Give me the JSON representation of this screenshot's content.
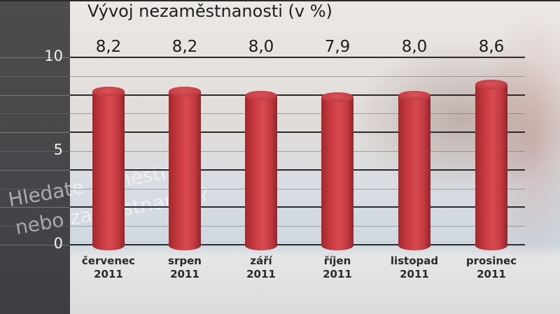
{
  "chart_data": {
    "type": "bar",
    "title": "Vývoj nezaměstnanosti (v %)",
    "xlabel": "",
    "ylabel": "",
    "ylim": [
      0,
      10
    ],
    "yticks": [
      "0",
      "5",
      "10"
    ],
    "grid": true,
    "categories": [
      "červenec 2011",
      "srpen 2011",
      "září 2011",
      "říjen 2011",
      "listopad 2011",
      "prosinec 2011"
    ],
    "category_lines": [
      {
        "month": "červenec",
        "year": "2011"
      },
      {
        "month": "srpen",
        "year": "2011"
      },
      {
        "month": "září",
        "year": "2011"
      },
      {
        "month": "říjen",
        "year": "2011"
      },
      {
        "month": "listopad",
        "year": "2011"
      },
      {
        "month": "prosinec",
        "year": "2011"
      }
    ],
    "values": [
      8.2,
      8.2,
      8.0,
      7.9,
      8.0,
      8.6
    ],
    "value_labels": [
      "8,2",
      "8,2",
      "8,0",
      "7,9",
      "8,0",
      "8,6"
    ],
    "bar_color": "#c83a40"
  },
  "background_watermark": [
    "Hledate zaměstnání",
    "nebo zaměstnance?"
  ]
}
